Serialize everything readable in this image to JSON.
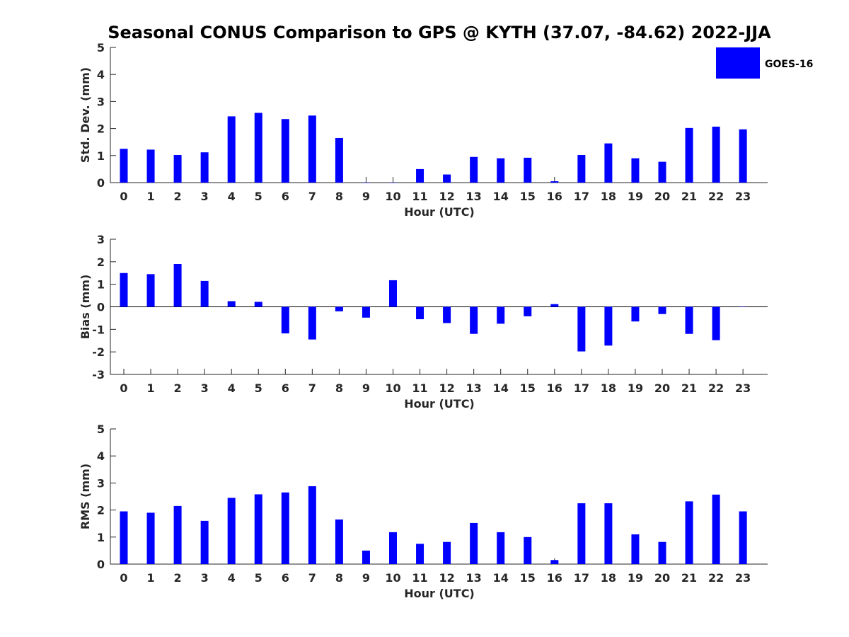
{
  "title": "Seasonal CONUS Comparison to GPS @ KYTH (37.07, -84.62) 2022-JJA",
  "legend": {
    "label": "GOES-16",
    "color": "#0000ff"
  },
  "chart_data": [
    {
      "type": "bar",
      "name": "std-dev",
      "ylabel": "Std. Dev. (mm)",
      "xlabel": "Hour (UTC)",
      "categories": [
        "0",
        "1",
        "2",
        "3",
        "4",
        "5",
        "6",
        "7",
        "8",
        "9",
        "10",
        "11",
        "12",
        "13",
        "14",
        "15",
        "16",
        "17",
        "18",
        "19",
        "20",
        "21",
        "22",
        "23"
      ],
      "values": [
        1.25,
        1.22,
        1.02,
        1.12,
        2.45,
        2.58,
        2.35,
        2.48,
        1.65,
        0,
        0,
        0.5,
        0.3,
        0.95,
        0.9,
        0.92,
        0.05,
        1.02,
        1.45,
        0.9,
        0.77,
        2.02,
        2.07,
        1.97
      ],
      "yticks": [
        "0",
        "1",
        "2",
        "3",
        "4",
        "5"
      ],
      "ylim": [
        0,
        5
      ],
      "bar_color": "#0000ff"
    },
    {
      "type": "bar",
      "name": "bias",
      "ylabel": "Bias (mm)",
      "xlabel": "Hour (UTC)",
      "categories": [
        "0",
        "1",
        "2",
        "3",
        "4",
        "5",
        "6",
        "7",
        "8",
        "9",
        "10",
        "11",
        "12",
        "13",
        "14",
        "15",
        "16",
        "17",
        "18",
        "19",
        "20",
        "21",
        "22",
        "23"
      ],
      "values": [
        1.5,
        1.45,
        1.9,
        1.15,
        0.25,
        0.22,
        -1.18,
        -1.45,
        -0.2,
        -0.48,
        1.18,
        -0.55,
        -0.72,
        -1.2,
        -0.75,
        -0.42,
        0.12,
        -1.98,
        -1.72,
        -0.65,
        -0.32,
        -1.2,
        -1.48,
        0
      ],
      "yticks": [
        "-3",
        "-2",
        "-1",
        "0",
        "1",
        "2",
        "3"
      ],
      "ylim": [
        -3,
        3
      ],
      "bar_color": "#0000ff"
    },
    {
      "type": "bar",
      "name": "rms",
      "ylabel": "RMS (mm)",
      "xlabel": "Hour (UTC)",
      "categories": [
        "0",
        "1",
        "2",
        "3",
        "4",
        "5",
        "6",
        "7",
        "8",
        "9",
        "10",
        "11",
        "12",
        "13",
        "14",
        "15",
        "16",
        "17",
        "18",
        "19",
        "20",
        "21",
        "22",
        "23"
      ],
      "values": [
        1.95,
        1.9,
        2.15,
        1.6,
        2.45,
        2.58,
        2.65,
        2.88,
        1.65,
        0.5,
        1.18,
        0.75,
        0.82,
        1.52,
        1.18,
        1.0,
        0.15,
        2.25,
        2.25,
        1.1,
        0.82,
        2.32,
        2.57,
        1.95
      ],
      "yticks": [
        "0",
        "1",
        "2",
        "3",
        "4",
        "5"
      ],
      "ylim": [
        0,
        5
      ],
      "bar_color": "#0000ff"
    }
  ]
}
